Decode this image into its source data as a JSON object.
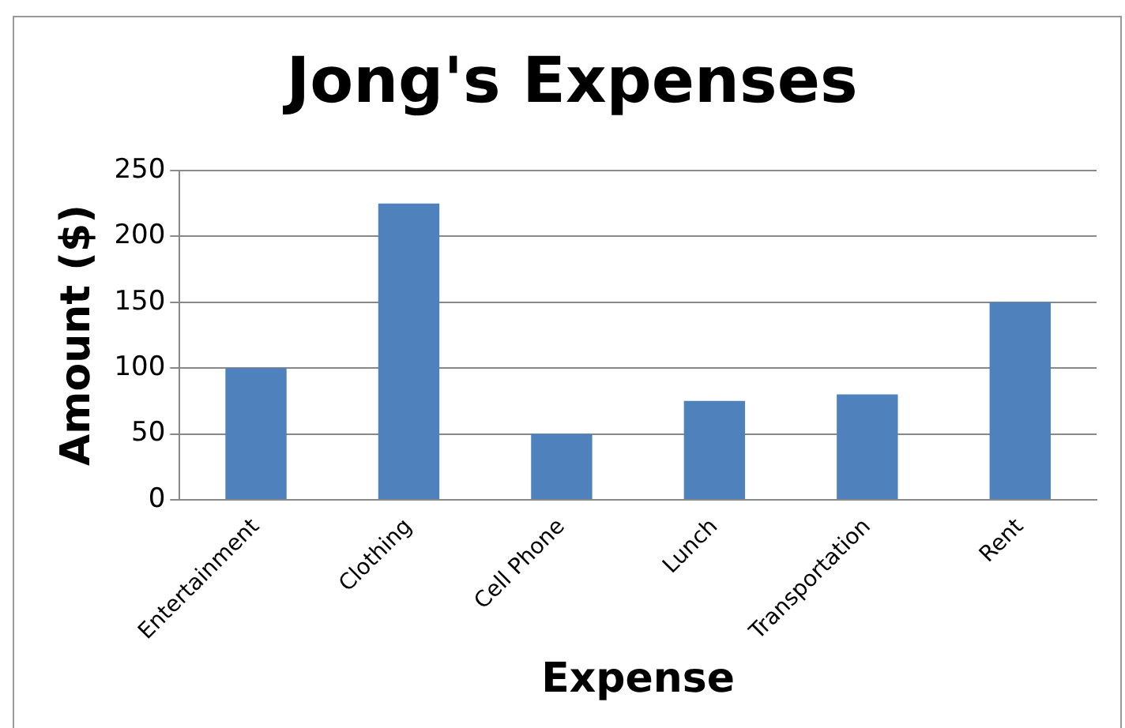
{
  "chart_data": {
    "type": "bar",
    "title": "Jong's Expenses",
    "xlabel": "Expense",
    "ylabel": "Amount ($)",
    "categories": [
      "Entertainment",
      "Clothing",
      "Cell Phone",
      "Lunch",
      "Transportation",
      "Rent"
    ],
    "values": [
      100,
      225,
      50,
      75,
      80,
      150
    ],
    "color": "#4f81bd",
    "ylim": [
      0,
      250
    ],
    "yticks": [
      0,
      50,
      100,
      150,
      200,
      250
    ],
    "grid": "y",
    "legend": false
  }
}
